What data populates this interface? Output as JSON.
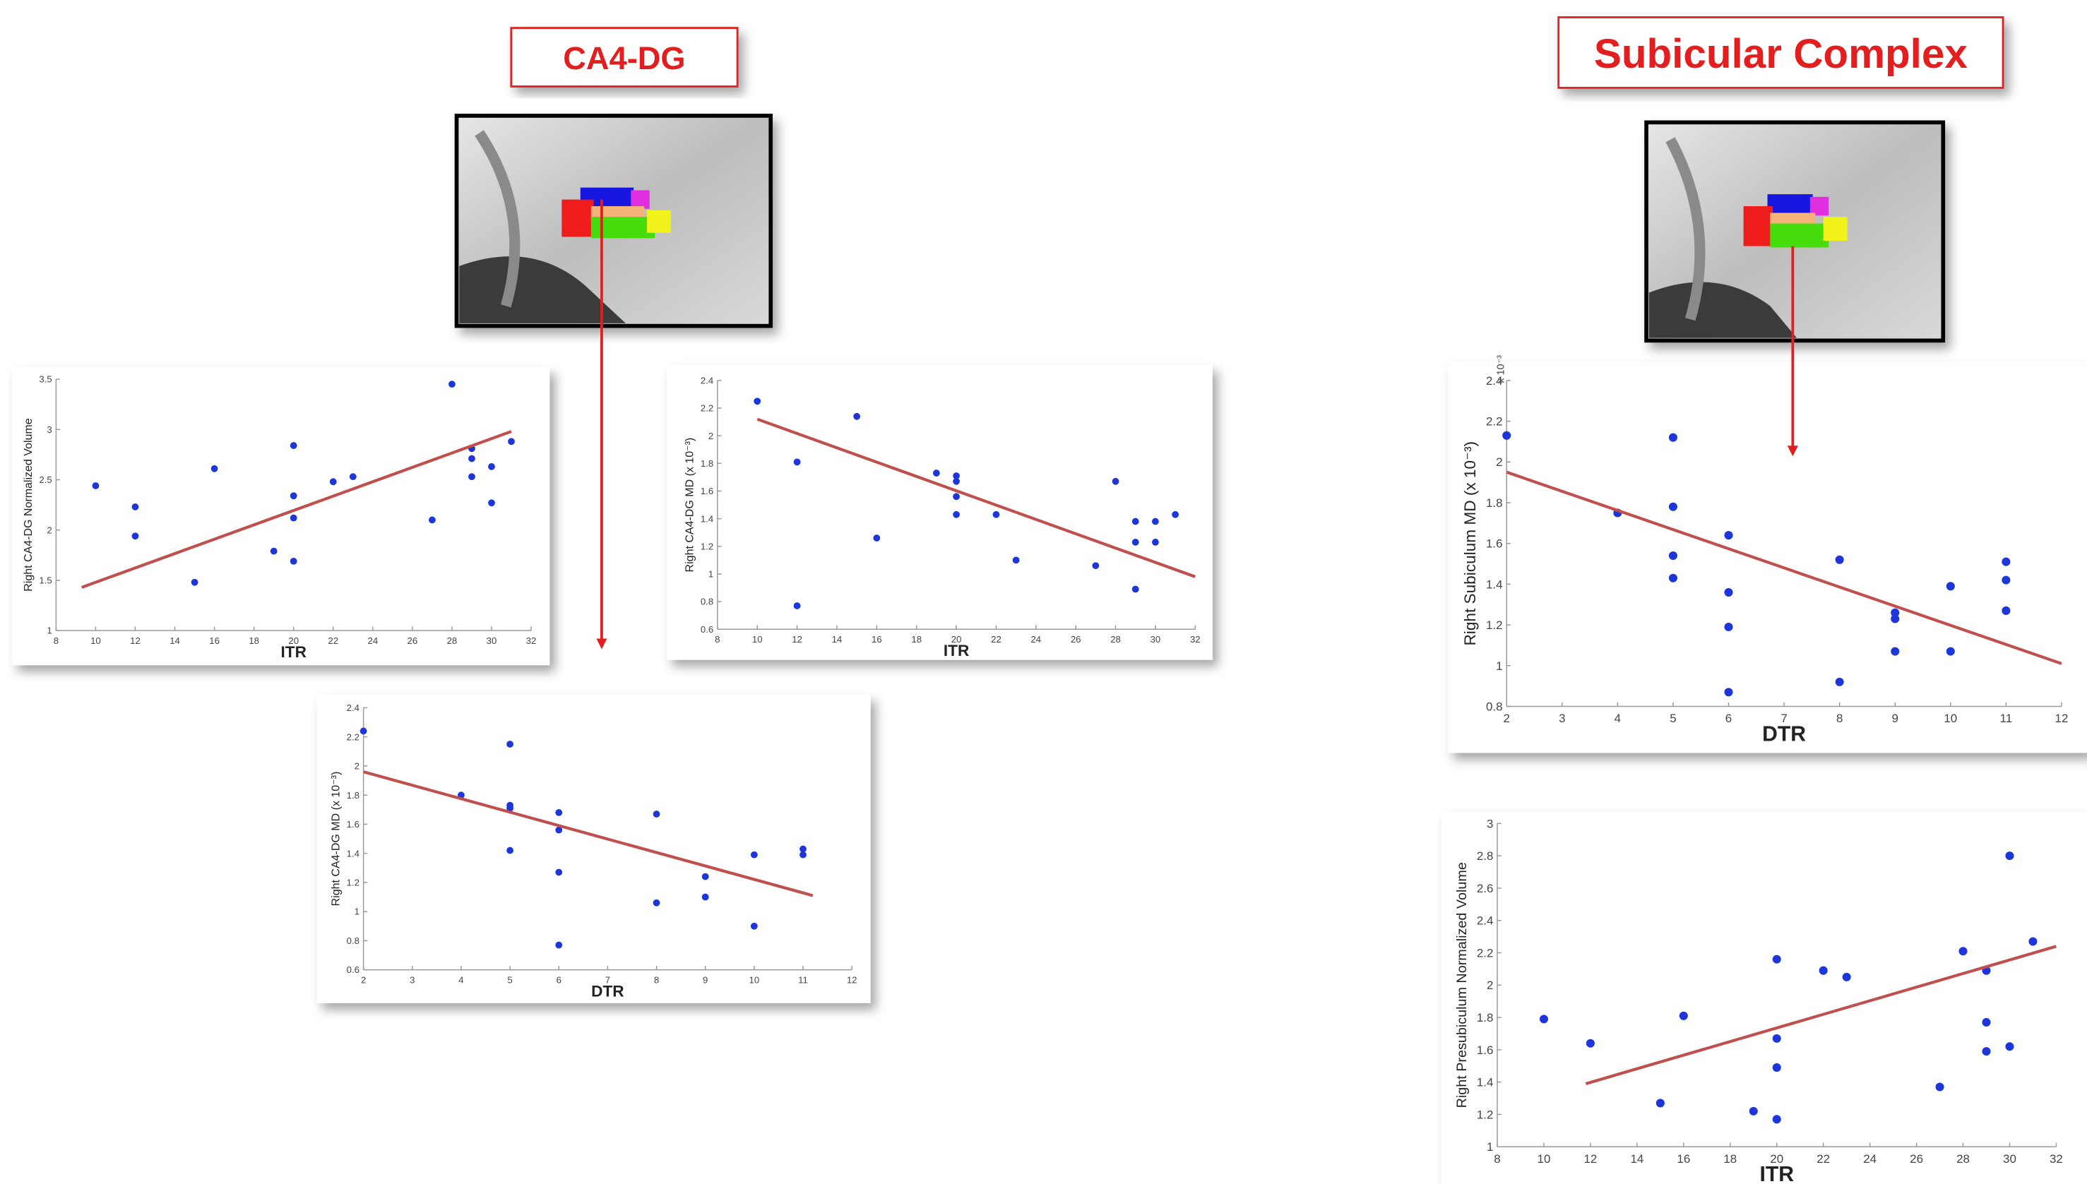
{
  "headings": [
    "CA4-DG",
    "Subicular Complex"
  ],
  "chart_data": [
    {
      "type": "scatter",
      "x_label": "ITR",
      "y_label": "Right CA4-DG Normalized Volume",
      "x": [
        10,
        12,
        12,
        15,
        16,
        19,
        20,
        20,
        20,
        20,
        22,
        23,
        27,
        28,
        29,
        29,
        29,
        30,
        30,
        31
      ],
      "values": [
        2.44,
        2.23,
        1.94,
        1.48,
        2.61,
        1.79,
        2.84,
        2.34,
        2.12,
        1.69,
        2.48,
        2.53,
        2.1,
        3.45,
        2.81,
        2.71,
        2.53,
        2.63,
        2.27,
        2.88
      ],
      "color": "#1c36d9",
      "trend": {
        "x": [
          9.3,
          31
        ],
        "y": [
          1.43,
          2.98
        ],
        "color": "#c0504d"
      },
      "xlim": [
        8,
        32
      ],
      "xticks": [
        8,
        10,
        12,
        14,
        16,
        18,
        20,
        22,
        24,
        26,
        28,
        30,
        32
      ],
      "ylim": [
        1,
        3.5
      ],
      "yticks": [
        1,
        1.5,
        2,
        2.5,
        3,
        3.5
      ]
    },
    {
      "type": "scatter",
      "x_label": "ITR",
      "y_label": "Right CA4-DG MD (x 10⁻³)",
      "x": [
        10,
        12,
        12,
        15,
        16,
        19,
        20,
        20,
        20,
        20,
        22,
        23,
        27,
        28,
        29,
        29,
        29,
        30,
        30,
        31
      ],
      "values": [
        2.25,
        1.81,
        0.77,
        2.14,
        1.26,
        1.73,
        1.71,
        1.67,
        1.56,
        1.43,
        1.43,
        1.1,
        1.06,
        1.67,
        1.38,
        1.23,
        0.89,
        1.38,
        1.23,
        1.43
      ],
      "color": "#1c36d9",
      "trend": {
        "x": [
          10,
          32
        ],
        "y": [
          2.12,
          0.98
        ],
        "color": "#c0504d"
      },
      "xlim": [
        8,
        32
      ],
      "xticks": [
        8,
        10,
        12,
        14,
        16,
        18,
        20,
        22,
        24,
        26,
        28,
        30,
        32
      ],
      "ylim": [
        0.6,
        2.4
      ],
      "yticks": [
        0.6,
        0.8,
        1,
        1.2,
        1.4,
        1.6,
        1.8,
        2,
        2.2,
        2.4
      ]
    },
    {
      "type": "scatter",
      "x_label": "DTR",
      "y_label": "Right CA4-DG MD (x 10⁻³)",
      "x": [
        2,
        4,
        5,
        5,
        5,
        5,
        6,
        6,
        6,
        6,
        8,
        8,
        9,
        9,
        10,
        10,
        11,
        11
      ],
      "values": [
        2.24,
        1.8,
        2.15,
        1.73,
        1.71,
        1.42,
        1.68,
        1.56,
        1.27,
        0.77,
        1.67,
        1.06,
        1.24,
        1.1,
        1.39,
        0.9,
        1.43,
        1.39
      ],
      "color": "#1c36d9",
      "trend": {
        "x": [
          2,
          11.2
        ],
        "y": [
          1.96,
          1.11
        ],
        "color": "#c0504d"
      },
      "xlim": [
        2,
        12
      ],
      "xticks": [
        2,
        3,
        4,
        5,
        6,
        7,
        8,
        9,
        10,
        11,
        12
      ],
      "ylim": [
        0.6,
        2.4
      ],
      "yticks": [
        0.6,
        0.8,
        1,
        1.2,
        1.4,
        1.6,
        1.8,
        2,
        2.2,
        2.4
      ]
    },
    {
      "type": "scatter",
      "x_label": "DTR",
      "y_label": "Right Subiculum MD (x 10⁻³)",
      "y_offset_label": "x 10⁻³",
      "x": [
        2,
        4,
        5,
        5,
        5,
        5,
        6,
        6,
        6,
        6,
        8,
        8,
        9,
        9,
        9,
        10,
        10,
        11,
        11,
        11
      ],
      "values": [
        2.13,
        1.75,
        2.12,
        1.78,
        1.54,
        1.43,
        1.64,
        1.36,
        1.19,
        0.87,
        1.52,
        0.92,
        1.26,
        1.23,
        1.07,
        1.39,
        1.07,
        1.51,
        1.42,
        1.27
      ],
      "color": "#1c36d9",
      "trend": {
        "x": [
          2,
          12
        ],
        "y": [
          1.95,
          1.01
        ],
        "color": "#c0504d"
      },
      "xlim": [
        2,
        12
      ],
      "xticks": [
        2,
        3,
        4,
        5,
        6,
        7,
        8,
        9,
        10,
        11,
        12
      ],
      "ylim": [
        0.8,
        2.4
      ],
      "yticks": [
        0.8,
        1,
        1.2,
        1.4,
        1.6,
        1.8,
        2,
        2.2,
        2.4
      ]
    },
    {
      "type": "scatter",
      "x_label": "ITR",
      "y_label": "Right Presubiculum Normalized Volume",
      "x": [
        10,
        12,
        15,
        16,
        19,
        20,
        20,
        20,
        20,
        22,
        23,
        27,
        28,
        29,
        29,
        29,
        30,
        30,
        31
      ],
      "values": [
        1.79,
        1.64,
        1.27,
        1.81,
        1.22,
        2.16,
        1.67,
        1.49,
        1.17,
        2.09,
        2.05,
        1.37,
        2.21,
        2.09,
        1.77,
        1.59,
        2.8,
        1.62,
        2.27
      ],
      "color": "#1c36d9",
      "trend": {
        "x": [
          11.8,
          32
        ],
        "y": [
          1.39,
          2.24
        ],
        "color": "#c0504d"
      },
      "xlim": [
        8,
        32
      ],
      "xticks": [
        8,
        10,
        12,
        14,
        16,
        18,
        20,
        22,
        24,
        26,
        28,
        30,
        32
      ],
      "ylim": [
        1,
        3
      ],
      "yticks": [
        1,
        1.2,
        1.4,
        1.6,
        1.8,
        2,
        2.2,
        2.4,
        2.6,
        2.8,
        3
      ]
    }
  ]
}
